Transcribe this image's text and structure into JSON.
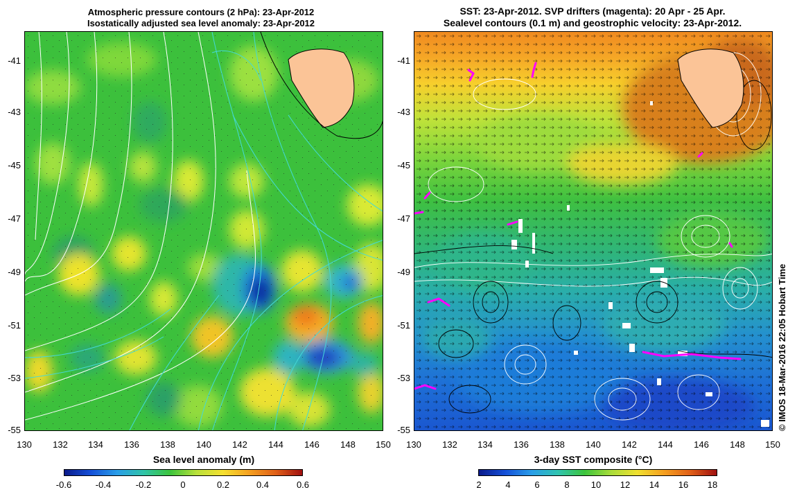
{
  "left_panel": {
    "title_line1": "Atmospheric pressure contours (2 hPa): 23-Apr-2012",
    "title_line2": "Isostatically adjusted sea level anomaly: 23-Apr-2012",
    "colorbar_label": "Sea level anomaly (m)",
    "colorbar_ticks": [
      "-0.6",
      "-0.4",
      "-0.2",
      "0",
      "0.2",
      "0.4",
      "0.6"
    ]
  },
  "right_panel": {
    "title_line1": "SST: 23-Apr-2012. SVP drifters (magenta): 20 Apr - 25 Apr.",
    "title_line2": "Sealevel contours (0.1 m) and geostrophic velocity: 23-Apr-2012.",
    "colorbar_label": "3-day SST composite (°C)",
    "colorbar_ticks": [
      "2",
      "4",
      "6",
      "8",
      "10",
      "12",
      "14",
      "16",
      "18"
    ]
  },
  "axes": {
    "y_ticks": [
      "-41",
      "-43",
      "-45",
      "-47",
      "-49",
      "-51",
      "-53",
      "-55"
    ],
    "x_ticks": [
      "130",
      "132",
      "134",
      "136",
      "138",
      "140",
      "142",
      "144",
      "146",
      "148",
      "150"
    ]
  },
  "credit": "© IMOS 18-Mar-2016 22:05 Hobart Time",
  "colors": {
    "land": "#fbc497",
    "pressure_contour": "#ffffff",
    "sla_contour": "#44d9d9",
    "drifter": "#ff00ff"
  }
}
